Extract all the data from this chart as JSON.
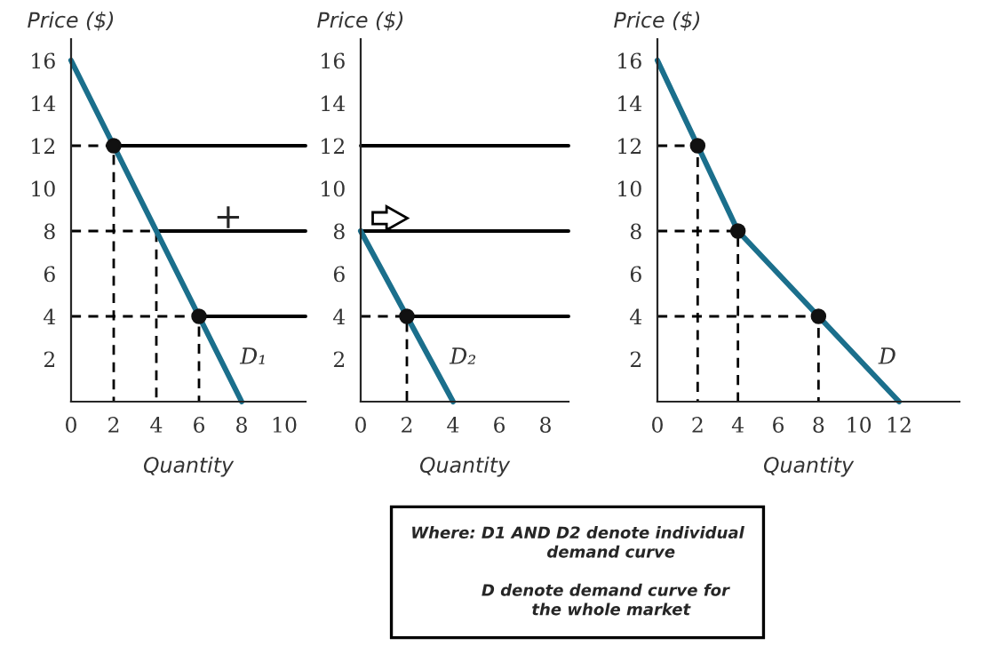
{
  "chart_data": [
    {
      "type": "line",
      "ylabel": "Price ($)",
      "xlabel": "Quantity",
      "xlim": [
        0,
        11
      ],
      "ylim": [
        0,
        17
      ],
      "xticks": [
        0,
        2,
        4,
        6,
        8,
        10
      ],
      "yticks": [
        2,
        4,
        6,
        8,
        10,
        12,
        14,
        16
      ],
      "series": [
        {
          "name": "D₁",
          "color": "#1b6f8c",
          "x": [
            0,
            2,
            4,
            6,
            8
          ],
          "values": [
            16,
            12,
            8,
            4,
            0
          ],
          "marker": "none"
        },
        {
          "color": "#111111",
          "x": [
            2,
            6
          ],
          "values": [
            12,
            4
          ],
          "type": "scatter",
          "marker": "circle"
        },
        {
          "color": "#000000",
          "x": [
            2,
            11
          ],
          "values": [
            12,
            12
          ]
        },
        {
          "color": "#000000",
          "x": [
            4,
            11
          ],
          "values": [
            8,
            8
          ]
        },
        {
          "color": "#000000",
          "x": [
            6,
            11
          ],
          "values": [
            4,
            4
          ]
        },
        {
          "color": "#000000",
          "x": [
            0,
            2,
            2
          ],
          "values": [
            12,
            12,
            0
          ],
          "line_style": "dashed"
        },
        {
          "color": "#000000",
          "x": [
            0,
            4,
            4
          ],
          "values": [
            8,
            8,
            0
          ],
          "line_style": "dashed"
        },
        {
          "color": "#000000",
          "x": [
            0,
            6,
            6
          ],
          "values": [
            4,
            4,
            0
          ],
          "line_style": "dashed"
        }
      ],
      "annotations": [
        "+"
      ]
    },
    {
      "type": "line",
      "ylabel": "Price ($)",
      "xlabel": "Quantity",
      "xlim": [
        0,
        9
      ],
      "ylim": [
        0,
        17
      ],
      "xticks": [
        0,
        2,
        4,
        6,
        8
      ],
      "yticks": [
        2,
        4,
        6,
        8,
        10,
        12,
        14,
        16
      ],
      "series": [
        {
          "name": "D₂",
          "color": "#1b6f8c",
          "x": [
            0,
            2,
            4
          ],
          "values": [
            8,
            4,
            0
          ],
          "marker": "none"
        },
        {
          "color": "#111111",
          "x": [
            2
          ],
          "values": [
            4
          ],
          "type": "scatter",
          "marker": "circle"
        },
        {
          "color": "#000000",
          "x": [
            0,
            9
          ],
          "values": [
            12,
            12
          ]
        },
        {
          "color": "#000000",
          "x": [
            0,
            9
          ],
          "values": [
            8,
            8
          ]
        },
        {
          "color": "#000000",
          "x": [
            2,
            9
          ],
          "values": [
            4,
            4
          ]
        },
        {
          "color": "#000000",
          "x": [
            0,
            2,
            2
          ],
          "values": [
            4,
            4,
            0
          ],
          "line_style": "dashed"
        }
      ],
      "annotations": [
        "Where: D1 AND D2 denote individual\n            demand curve\n\n          D denote demand curve for\n            the whole market"
      ]
    },
    {
      "type": "line",
      "ylabel": "Price ($)",
      "xlabel": "Quantity",
      "xlim": [
        0,
        15
      ],
      "ylim": [
        0,
        17
      ],
      "xticks": [
        0,
        2,
        4,
        6,
        8,
        10,
        12
      ],
      "yticks": [
        2,
        4,
        6,
        8,
        10,
        12,
        14,
        16
      ],
      "series": [
        {
          "name": "D",
          "color": "#1b6f8c",
          "x": [
            0,
            2,
            4,
            8,
            12
          ],
          "values": [
            16,
            12,
            8,
            4,
            0
          ],
          "marker": "none"
        },
        {
          "color": "#111111",
          "x": [
            2,
            4,
            8
          ],
          "values": [
            12,
            8,
            4
          ],
          "type": "scatter",
          "marker": "circle"
        },
        {
          "color": "#000000",
          "x": [
            0,
            2,
            2
          ],
          "values": [
            12,
            12,
            0
          ],
          "line_style": "dashed"
        },
        {
          "color": "#000000",
          "x": [
            0,
            4,
            4
          ],
          "values": [
            8,
            8,
            0
          ],
          "line_style": "dashed"
        },
        {
          "color": "#000000",
          "x": [
            0,
            8,
            8
          ],
          "values": [
            4,
            4,
            0
          ],
          "line_style": "dashed"
        }
      ]
    }
  ]
}
